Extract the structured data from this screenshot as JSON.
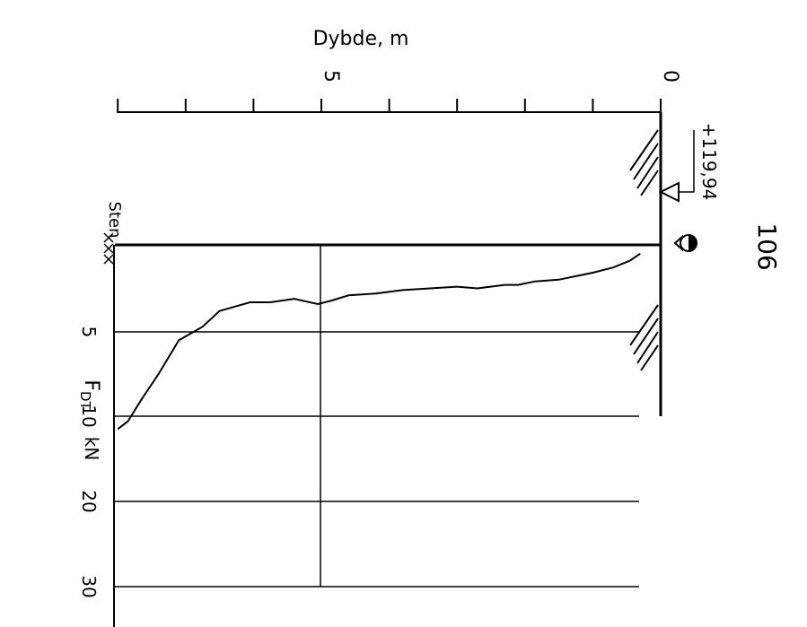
{
  "chart_data": {
    "type": "line",
    "orientation": "rotated-90-clockwise",
    "sounding_id": "106",
    "elevation_label": "+119,94",
    "depth_axis": {
      "label": "Dybde, m",
      "range": [
        0,
        8
      ],
      "tick_step": 1,
      "labels": [
        {
          "value": 0,
          "text": "0"
        },
        {
          "value": 5,
          "text": "5"
        }
      ]
    },
    "force_axis": {
      "label_main": "F",
      "label_sub": "DT",
      "unit": "kN",
      "ticks": [
        5,
        10,
        20,
        30
      ],
      "tick_labels": [
        "5",
        "10",
        "20",
        "30"
      ]
    },
    "annotation_stone": "Sten",
    "series": [
      {
        "values_depth_m": [
          0.3,
          0.45,
          0.7,
          1.0,
          1.25,
          1.5,
          1.85,
          2.1,
          2.3,
          2.7,
          3.0,
          3.4,
          3.8,
          4.2,
          4.6,
          4.85,
          5.05,
          5.4,
          5.75,
          6.05,
          6.5,
          6.75,
          7.1,
          7.4,
          7.65,
          7.85,
          8.0
        ],
        "values_force_kN": [
          0.5,
          0.9,
          1.3,
          1.6,
          1.8,
          2.0,
          2.1,
          2.3,
          2.3,
          2.5,
          2.4,
          2.5,
          2.6,
          2.8,
          2.9,
          3.2,
          3.4,
          3.1,
          3.3,
          3.3,
          3.8,
          4.7,
          5.5,
          7.5,
          9.0,
          10.6,
          11.5
        ]
      }
    ]
  }
}
